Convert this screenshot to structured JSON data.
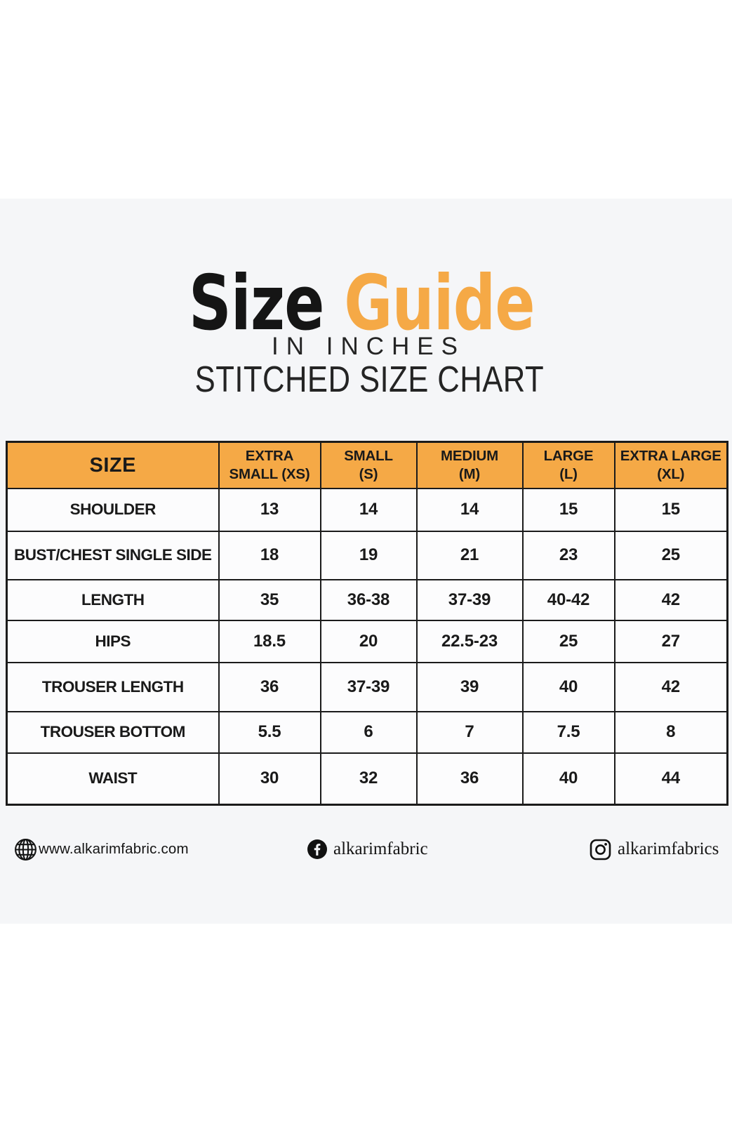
{
  "page": {
    "background": "#ffffff",
    "panel_background": "#f5f6f8",
    "accent_color": "#f5a946",
    "text_color": "#1a1a1a"
  },
  "header": {
    "title_word_black": "Size",
    "title_word_accent": "Guide",
    "subtitle_line1": "IN INCHES",
    "subtitle_line2": "STITCHED SIZE CHART"
  },
  "table": {
    "columns": [
      "SIZE",
      "EXTRA\nSMALL (XS)",
      "SMALL\n(S)",
      "MEDIUM\n(M)",
      "LARGE\n(L)",
      "EXTRA LARGE\n(XL)"
    ],
    "rows": [
      {
        "label": "SHOULDER",
        "values": [
          "13",
          "14",
          "14",
          "15",
          "15"
        ]
      },
      {
        "label": "BUST/CHEST SINGLE SIDE",
        "values": [
          "18",
          "19",
          "21",
          "23",
          "25"
        ]
      },
      {
        "label": "LENGTH",
        "values": [
          "35",
          "36-38",
          "37-39",
          "40-42",
          "42"
        ]
      },
      {
        "label": "HIPS",
        "values": [
          "18.5",
          "20",
          "22.5-23",
          "25",
          "27"
        ]
      },
      {
        "label": "TROUSER LENGTH",
        "values": [
          "36",
          "37-39",
          "39",
          "40",
          "42"
        ]
      },
      {
        "label": "TROUSER BOTTOM",
        "values": [
          "5.5",
          "6",
          "7",
          "7.5",
          "8"
        ]
      },
      {
        "label": "WAIST",
        "values": [
          "30",
          "32",
          "36",
          "40",
          "44"
        ]
      }
    ],
    "header_background": "#f5a946",
    "border_color": "#1b1b1b"
  },
  "footer": {
    "website": {
      "icon": "globe-icon",
      "text": "www.alkarimfabric.com"
    },
    "facebook": {
      "icon": "facebook-icon",
      "text": "alkarimfabric"
    },
    "instagram": {
      "icon": "instagram-icon",
      "text": "alkarimfabrics"
    }
  },
  "chart_data": {
    "type": "table",
    "title": "Size Guide",
    "subtitle": "IN INCHES - STITCHED SIZE CHART",
    "columns": [
      "SIZE",
      "EXTRA SMALL (XS)",
      "SMALL (S)",
      "MEDIUM (M)",
      "LARGE (L)",
      "EXTRA LARGE (XL)"
    ],
    "rows": [
      [
        "SHOULDER",
        "13",
        "14",
        "14",
        "15",
        "15"
      ],
      [
        "BUST/CHEST SINGLE SIDE",
        "18",
        "19",
        "21",
        "23",
        "25"
      ],
      [
        "LENGTH",
        "35",
        "36-38",
        "37-39",
        "40-42",
        "42"
      ],
      [
        "HIPS",
        "18.5",
        "20",
        "22.5-23",
        "25",
        "27"
      ],
      [
        "TROUSER LENGTH",
        "36",
        "37-39",
        "39",
        "40",
        "42"
      ],
      [
        "TROUSER BOTTOM",
        "5.5",
        "6",
        "7",
        "7.5",
        "8"
      ],
      [
        "WAIST",
        "30",
        "32",
        "36",
        "40",
        "44"
      ]
    ]
  }
}
